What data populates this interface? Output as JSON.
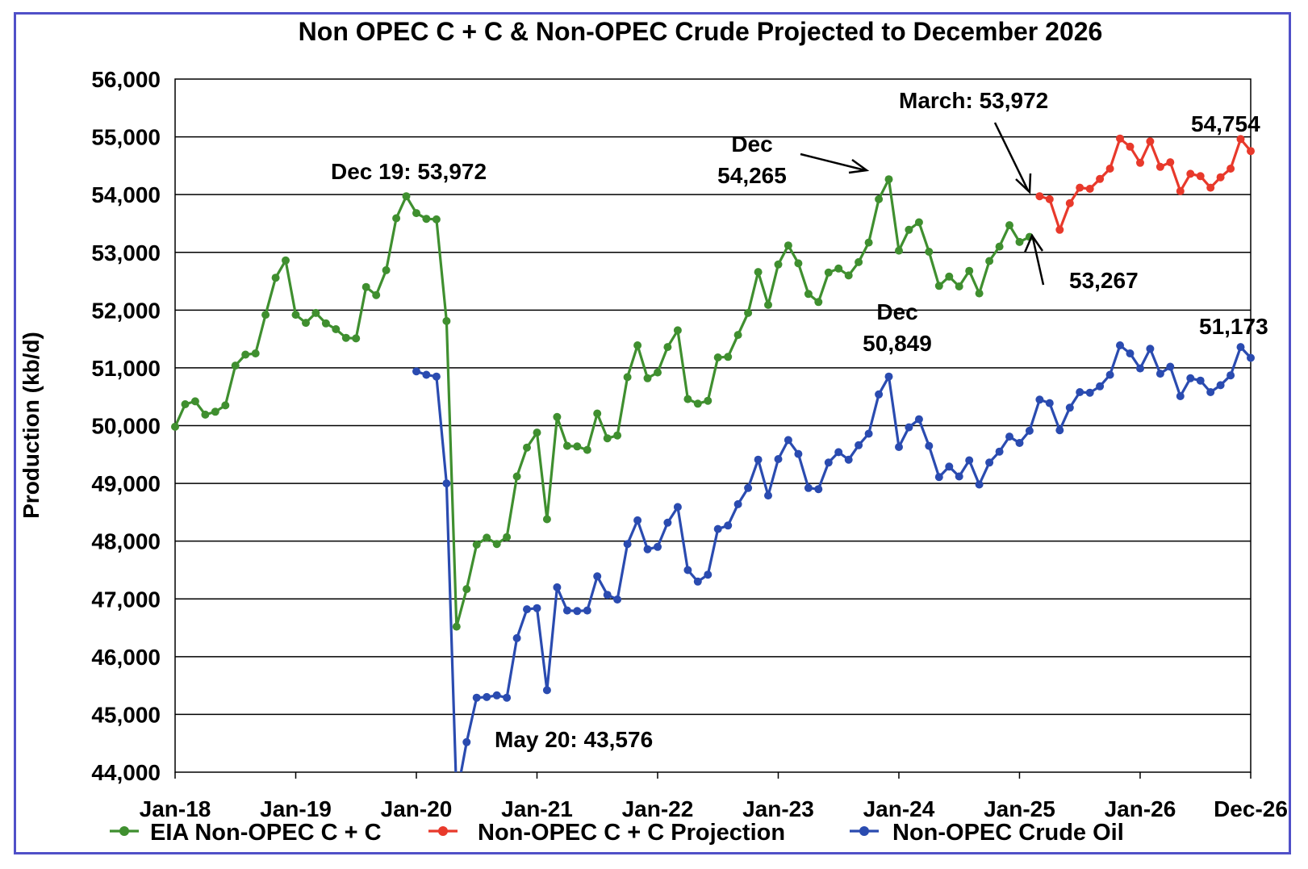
{
  "chart_data": {
    "type": "line",
    "title": "Non OPEC C + C & Non-OPEC Crude Projected to December 2026",
    "ylabel": "Production (kb/d)",
    "xlabel": "",
    "ylim": [
      44000,
      56000
    ],
    "y_ticks": [
      "44,000",
      "45,000",
      "46,000",
      "47,000",
      "48,000",
      "49,000",
      "50,000",
      "51,000",
      "52,000",
      "53,000",
      "54,000",
      "55,000",
      "56,000"
    ],
    "x_ticks": [
      "Jan-18",
      "Jan-19",
      "Jan-20",
      "Jan-21",
      "Jan-22",
      "Jan-23",
      "Jan-24",
      "Jan-25",
      "Jan-26",
      "Dec-26"
    ],
    "x_start": "2018-01",
    "x_end": "2026-12",
    "grid": "horizontal",
    "legend_position": "bottom",
    "series": [
      {
        "name": "EIA Non-OPEC C + C",
        "color": "#3f8f2f",
        "start": "2018-01",
        "values": [
          49980,
          50370,
          50420,
          50190,
          50240,
          50350,
          51040,
          51230,
          51250,
          51920,
          52560,
          52860,
          51920,
          51780,
          51950,
          51770,
          51670,
          51520,
          51510,
          52400,
          52260,
          52690,
          53590,
          53972,
          53680,
          53580,
          53570,
          51810,
          46520,
          47170,
          47940,
          48060,
          47950,
          48070,
          49120,
          49620,
          49880,
          48380,
          50150,
          49650,
          49640,
          49580,
          50210,
          49780,
          49830,
          50840,
          51390,
          50820,
          50920,
          51360,
          51650,
          50460,
          50380,
          50430,
          51180,
          51190,
          51570,
          51950,
          52660,
          52090,
          52790,
          53120,
          52810,
          52280,
          52140,
          52650,
          52720,
          52600,
          52830,
          53170,
          53920,
          54265,
          53030,
          53390,
          53520,
          53010,
          52420,
          52580,
          52410,
          52680,
          52290,
          52850,
          53100,
          53470,
          53180,
          53267
        ]
      },
      {
        "name": "Non-OPEC C + C Projection",
        "color": "#e8392b",
        "start": "2025-03",
        "values": [
          53972,
          53920,
          53390,
          53850,
          54120,
          54100,
          54270,
          54450,
          54970,
          54830,
          54550,
          54920,
          54480,
          54560,
          54060,
          54360,
          54320,
          54120,
          54300,
          54450,
          54960,
          54754
        ]
      },
      {
        "name": "Non-OPEC Crude Oil",
        "color": "#2a4bb0",
        "start": "2020-01",
        "values": [
          50940,
          50880,
          50850,
          49000,
          43576,
          44520,
          45290,
          45300,
          45330,
          45290,
          46320,
          46820,
          46840,
          45420,
          47200,
          46800,
          46790,
          46800,
          47390,
          47070,
          46990,
          47950,
          48360,
          47860,
          47900,
          48320,
          48590,
          47500,
          47300,
          47420,
          48210,
          48270,
          48640,
          48920,
          49410,
          48790,
          49420,
          49750,
          49510,
          48920,
          48900,
          49360,
          49540,
          49410,
          49660,
          49860,
          50540,
          50849,
          49630,
          49970,
          50110,
          49650,
          49110,
          49290,
          49120,
          49400,
          48980,
          49360,
          49550,
          49810,
          49700,
          49910,
          50450,
          50390,
          49920,
          50310,
          50580,
          50570,
          50680,
          50880,
          51390,
          51250,
          50990,
          51330,
          50900,
          51020,
          50510,
          50820,
          50780,
          50580,
          50700,
          50870,
          51360,
          51173
        ]
      }
    ],
    "annotations": {
      "dec19": "Dec 19: 53,972",
      "dec_label": "Dec",
      "dec_value": "54,265",
      "march": "March: 53,972",
      "last_green": "53,267",
      "end_red": "54,754",
      "dec_blue_label": "Dec",
      "dec_blue_value": "50,849",
      "end_blue": "51,173",
      "may20": "May 20: 43,576"
    }
  }
}
